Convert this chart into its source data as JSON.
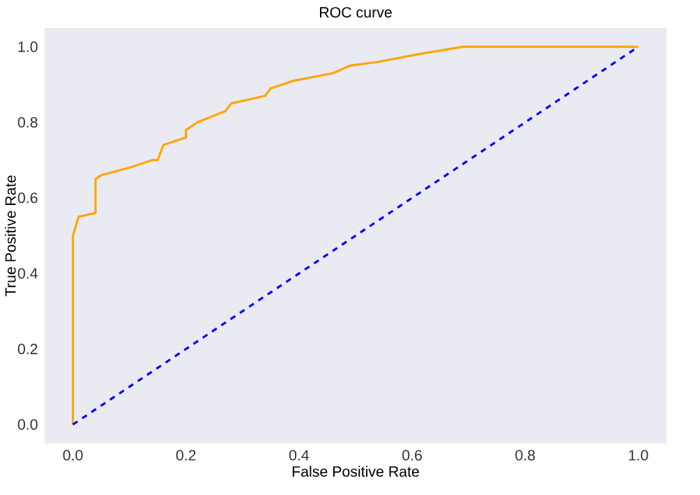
{
  "chart_data": {
    "type": "line",
    "title": "ROC curve",
    "xlabel": "False Positive Rate",
    "ylabel": "True Positive Rate",
    "xlim": [
      -0.05,
      1.05
    ],
    "ylim": [
      -0.05,
      1.05
    ],
    "xticks": [
      {
        "value": 0,
        "label": "0.0"
      },
      0.2,
      0.4,
      0.6,
      0.8,
      {
        "value": 1,
        "label": "1.0"
      }
    ],
    "yticks": [
      {
        "value": 0,
        "label": "0.0"
      },
      0.2,
      0.4,
      0.6,
      0.8,
      {
        "value": 1,
        "label": "1.0"
      }
    ],
    "grid": false,
    "marker": "none",
    "series": [
      {
        "color": "#ffa500",
        "line_style": "solid",
        "x": [
          0,
          0,
          0.01,
          0.04,
          0.04,
          0.05,
          0.1,
          0.14,
          0.15,
          0.16,
          0.2,
          0.2,
          0.22,
          0.27,
          0.28,
          0.34,
          0.35,
          0.39,
          0.46,
          0.49,
          0.54,
          0.61,
          0.69,
          0.8,
          1.0
        ],
        "values": [
          0,
          0.5,
          0.55,
          0.56,
          0.65,
          0.66,
          0.68,
          0.7,
          0.7,
          0.74,
          0.76,
          0.78,
          0.8,
          0.83,
          0.85,
          0.87,
          0.89,
          0.91,
          0.93,
          0.95,
          0.96,
          0.98,
          1.0,
          1.0,
          1.0
        ]
      },
      {
        "color": "#0000ff",
        "line_style": "dashed",
        "x": [
          0,
          1
        ],
        "values": [
          0,
          1
        ]
      }
    ]
  }
}
